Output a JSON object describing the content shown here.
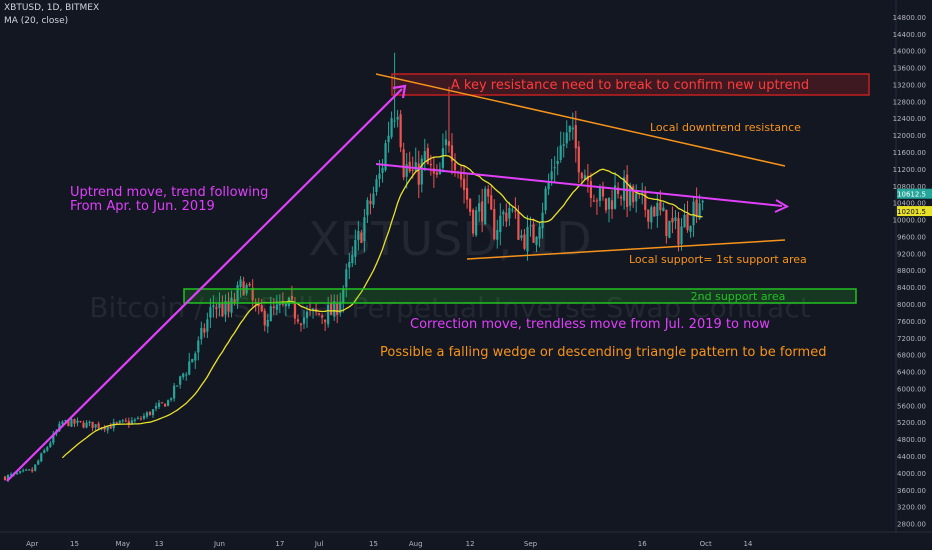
{
  "header": {
    "symbol_line": "XBTUSD, 1D, BITMEX",
    "indicator_line": "MA (20, close)"
  },
  "watermark": {
    "symbol": "XBTUSD, 1D",
    "description": "Bitcoin / US Dollar Perpetual Inverse Swap Contract"
  },
  "colors": {
    "background": "#131722",
    "up": "#26a69a",
    "down": "#ef5350",
    "ma": "#e8e02a",
    "magenta": "#e040fb",
    "orange": "#f7931a",
    "green_box": "#22c022",
    "red_box": "#c0201f",
    "axis_text": "#b2b5be"
  },
  "chart_data": {
    "type": "candlestick",
    "ylim": [
      2600,
      15200
    ],
    "y_ticks": [
      "2800.00",
      "3200.00",
      "3600.00",
      "4000.00",
      "4400.00",
      "4800.00",
      "5200.00",
      "5600.00",
      "6000.00",
      "6400.00",
      "6800.00",
      "7200.00",
      "7600.00",
      "8000.00",
      "8400.00",
      "8800.00",
      "9200.00",
      "9600.00",
      "10000.00",
      "10400.00",
      "10800.00",
      "11200.00",
      "11600.00",
      "12000.00",
      "12400.00",
      "12800.00",
      "13200.00",
      "13600.00",
      "14000.00",
      "14400.00",
      "14800.00"
    ],
    "x_ticks": [
      "Apr",
      "15",
      "May",
      "13",
      "Jun",
      "17",
      "Jul",
      "15",
      "Aug",
      "12",
      "Sep",
      "16",
      "Oct",
      "14"
    ],
    "price_labels": [
      {
        "text": "10612.5",
        "value": 10612.5,
        "kind": "last"
      },
      {
        "text": "10201.5",
        "value": 10201.5,
        "kind": "ma"
      }
    ],
    "anchors": [
      [
        1,
        3900
      ],
      [
        10,
        4050
      ],
      [
        20,
        5200
      ],
      [
        35,
        5100
      ],
      [
        45,
        5250
      ],
      [
        55,
        5700
      ],
      [
        65,
        7000
      ],
      [
        70,
        8000
      ],
      [
        75,
        7800
      ],
      [
        80,
        8500
      ],
      [
        85,
        7700
      ],
      [
        90,
        7800
      ],
      [
        95,
        7900
      ],
      [
        100,
        7700
      ],
      [
        110,
        7800
      ],
      [
        115,
        8800
      ],
      [
        120,
        10000
      ],
      [
        125,
        11000
      ],
      [
        129,
        12500
      ],
      [
        131,
        12800
      ],
      [
        133,
        11300
      ],
      [
        137,
        11000
      ],
      [
        140,
        11400
      ],
      [
        144,
        10800
      ],
      [
        148,
        12000
      ],
      [
        152,
        11000
      ],
      [
        156,
        10000
      ],
      [
        160,
        10400
      ],
      [
        163,
        9800
      ],
      [
        168,
        10300
      ],
      [
        172,
        9600
      ],
      [
        176,
        9600
      ],
      [
        180,
        10600
      ],
      [
        184,
        11600
      ],
      [
        188,
        12000
      ],
      [
        192,
        11300
      ],
      [
        196,
        10700
      ],
      [
        200,
        10300
      ],
      [
        204,
        10800
      ],
      [
        208,
        10500
      ],
      [
        212,
        10300
      ],
      [
        216,
        10300
      ],
      [
        220,
        9900
      ],
      [
        224,
        9700
      ],
      [
        228,
        10200
      ],
      [
        232,
        10600
      ]
    ],
    "ma_period": 20,
    "annotations": [
      {
        "id": "resistance",
        "text": "A key resistance need to break to confirm new uptrend"
      },
      {
        "id": "downtrend",
        "text": "Local downtrend resistance"
      },
      {
        "id": "uptrend1",
        "text": "Uptrend move, trend following"
      },
      {
        "id": "uptrend2",
        "text": "From Apr. to Jun. 2019"
      },
      {
        "id": "support1",
        "text": "Local support= 1st support area"
      },
      {
        "id": "support2",
        "text": "2nd support area"
      },
      {
        "id": "correction",
        "text": "Correction move, trendless move from Jul. 2019 to now"
      },
      {
        "id": "pattern",
        "text": "Possible a falling wedge or descending triangle pattern to be formed"
      }
    ]
  }
}
